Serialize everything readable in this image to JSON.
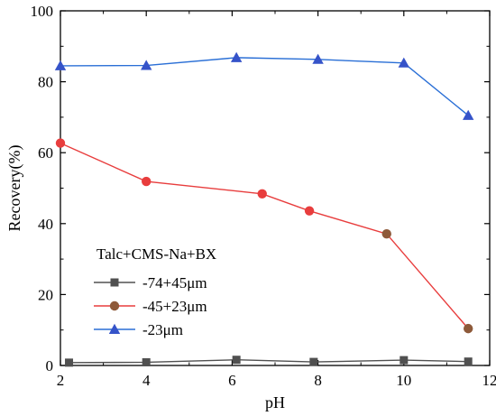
{
  "chart_data": {
    "type": "line",
    "xlabel": "pH",
    "ylabel": "Recovery(%)",
    "xlim": [
      2,
      12
    ],
    "ylim": [
      0,
      100
    ],
    "xticks": [
      2,
      4,
      6,
      8,
      10,
      12
    ],
    "yticks": [
      0,
      20,
      40,
      60,
      80,
      100
    ],
    "grid": false,
    "legend": {
      "title": "Talc+CMS-Na+BX",
      "placement": "bottom-left"
    },
    "series": [
      {
        "name": "-74+45μm",
        "marker": "square",
        "color": "#505050",
        "x": [
          2.2,
          4.0,
          6.1,
          7.9,
          10.0,
          11.5
        ],
        "y": [
          0.8,
          0.9,
          1.6,
          1.0,
          1.5,
          1.1
        ]
      },
      {
        "name": "-45+23μm",
        "marker": "circle",
        "color": "#8e5a3a",
        "line_color": "#e83d3d",
        "x": [
          2.0,
          4.0,
          6.7,
          7.8,
          9.6,
          11.5
        ],
        "y": [
          62.7,
          51.9,
          48.4,
          43.6,
          37.1,
          10.4
        ]
      },
      {
        "name": "-23μm",
        "marker": "triangle",
        "color": "#3553c9",
        "line_color": "#2a6fd6",
        "x": [
          2.0,
          4.0,
          6.1,
          8.0,
          10.0,
          11.5
        ],
        "y": [
          84.5,
          84.6,
          86.8,
          86.3,
          85.3,
          70.5
        ]
      }
    ]
  }
}
